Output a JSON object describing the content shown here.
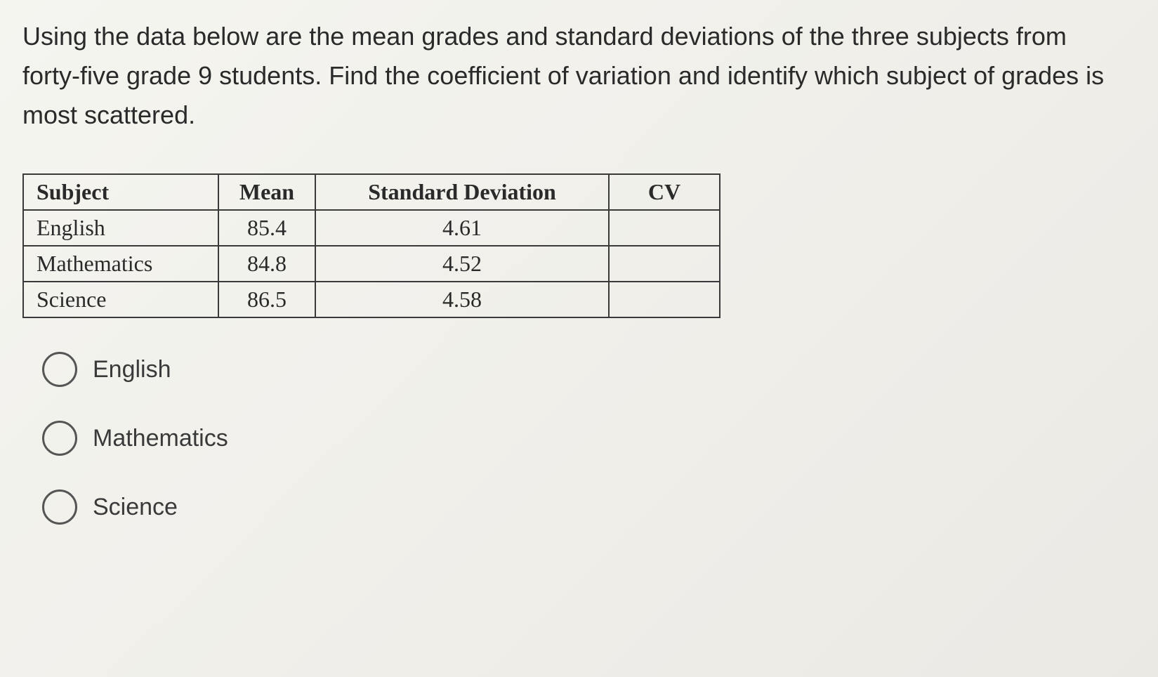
{
  "question": {
    "text": "Using the data below are the mean grades and standard deviations of the three subjects from forty-five grade 9 students. Find the coefficient of variation and identify which subject of grades is most scattered."
  },
  "table": {
    "type": "table",
    "columns": [
      "Subject",
      "Mean",
      "Standard Deviation",
      "CV"
    ],
    "rows": [
      {
        "subject": "English",
        "mean": "85.4",
        "sd": "4.61",
        "cv": ""
      },
      {
        "subject": "Mathematics",
        "mean": "84.8",
        "sd": "4.52",
        "cv": ""
      },
      {
        "subject": "Science",
        "mean": "86.5",
        "sd": "4.58",
        "cv": ""
      }
    ],
    "border_color": "#3a3a3a",
    "header_fontsize": 32,
    "cell_fontsize": 32,
    "font_family": "Georgia"
  },
  "options": [
    {
      "label": "English"
    },
    {
      "label": "Mathematics"
    },
    {
      "label": "Science"
    }
  ],
  "colors": {
    "background_start": "#f5f5f0",
    "background_end": "#ebe9e4",
    "text": "#2a2a2a",
    "radio_border": "#555555"
  }
}
